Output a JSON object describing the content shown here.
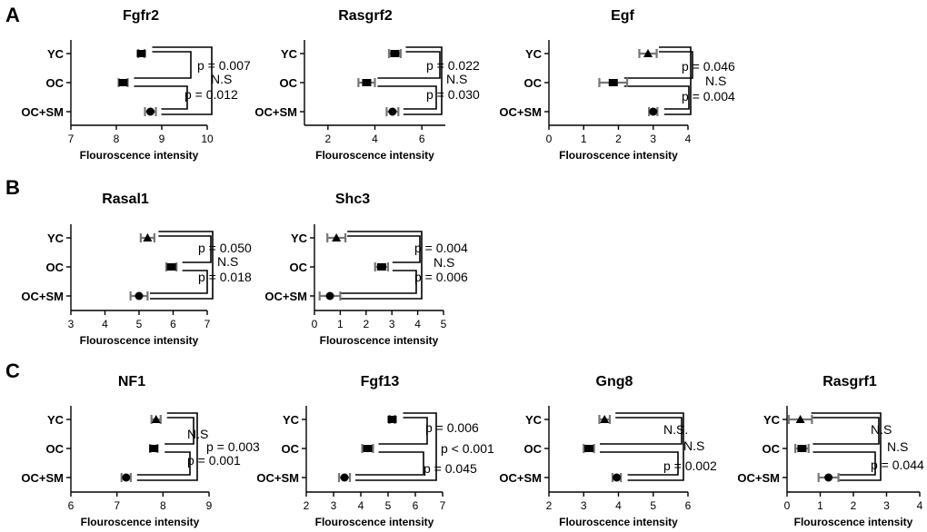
{
  "panels": [
    {
      "letter": "A",
      "color": "#000000"
    },
    {
      "letter": "B",
      "color": "#000000"
    },
    {
      "letter": "C",
      "color": "#000000"
    }
  ],
  "chart_data": [
    {
      "type": "scatter",
      "panel": "A",
      "title": "Fgfr2",
      "xlabel": "Flouroscence intensity",
      "xlim": [
        7,
        10
      ],
      "xticks": [
        7,
        8,
        9,
        10
      ],
      "categories": [
        "YC",
        "OC",
        "OC+SM"
      ],
      "values": [
        8.55,
        8.15,
        8.75
      ],
      "errors": [
        0.07,
        0.1,
        0.12
      ],
      "markers": [
        "square",
        "square",
        "circle"
      ],
      "annotations": [
        "p = 0.007",
        "N.S",
        "p = 0.012"
      ]
    },
    {
      "type": "scatter",
      "panel": "A",
      "title": "Rasgrf2",
      "xlabel": "Flouroscence intensity",
      "xlim": [
        1,
        7
      ],
      "xticks": [
        2,
        4,
        6
      ],
      "categories": [
        "YC",
        "OC",
        "OC+SM"
      ],
      "values": [
        4.85,
        3.65,
        4.75
      ],
      "errors": [
        0.25,
        0.35,
        0.25
      ],
      "markers": [
        "square",
        "square",
        "circle"
      ],
      "annotations": [
        "p = 0.022",
        "N.S",
        "p = 0.030"
      ]
    },
    {
      "type": "scatter",
      "panel": "A",
      "title": "Egf",
      "xlabel": "Flouroscence intensity",
      "xlim": [
        0,
        4
      ],
      "xticks": [
        0,
        1,
        2,
        3,
        4
      ],
      "categories": [
        "YC",
        "OC",
        "OC+SM"
      ],
      "values": [
        2.85,
        1.85,
        3.0
      ],
      "errors": [
        0.25,
        0.4,
        0.12
      ],
      "markers": [
        "triangle",
        "square",
        "circle"
      ],
      "annotations": [
        "p = 0.046",
        "N.S",
        "p = 0.004"
      ]
    },
    {
      "type": "scatter",
      "panel": "B",
      "title": "Rasal1",
      "xlabel": "Flouroscence intensity",
      "xlim": [
        3,
        7
      ],
      "xticks": [
        3,
        4,
        5,
        6,
        7
      ],
      "categories": [
        "YC",
        "OC",
        "OC+SM"
      ],
      "values": [
        5.25,
        5.95,
        5.0
      ],
      "errors": [
        0.2,
        0.15,
        0.25
      ],
      "markers": [
        "triangle",
        "square",
        "circle"
      ],
      "annotations": [
        "p = 0.050",
        "N.S",
        "p = 0.018"
      ]
    },
    {
      "type": "scatter",
      "panel": "B",
      "title": "Shc3",
      "xlabel": "Flouroscence intensity",
      "xlim": [
        0,
        5
      ],
      "xticks": [
        0,
        1,
        2,
        3,
        4,
        5
      ],
      "categories": [
        "YC",
        "OC",
        "OC+SM"
      ],
      "values": [
        0.85,
        2.6,
        0.6
      ],
      "errors": [
        0.35,
        0.25,
        0.4
      ],
      "markers": [
        "triangle",
        "square",
        "circle"
      ],
      "annotations": [
        "p = 0.004",
        "N.S",
        "p = 0.006"
      ]
    },
    {
      "type": "scatter",
      "panel": "C",
      "title": "NF1",
      "xlabel": "Flouroscence intensity",
      "xlim": [
        6,
        9
      ],
      "xticks": [
        6,
        7,
        8,
        9
      ],
      "categories": [
        "YC",
        "OC",
        "OC+SM"
      ],
      "values": [
        7.85,
        7.8,
        7.2
      ],
      "errors": [
        0.1,
        0.08,
        0.1
      ],
      "markers": [
        "triangle",
        "square",
        "circle"
      ],
      "annotations": [
        "N.S",
        "p = 0.003",
        "p = 0.001"
      ]
    },
    {
      "type": "scatter",
      "panel": "C",
      "title": "Fgf13",
      "xlabel": "Flouroscence intensity",
      "xlim": [
        2,
        7
      ],
      "xticks": [
        2,
        3,
        4,
        5,
        6,
        7
      ],
      "categories": [
        "YC",
        "OC",
        "OC+SM"
      ],
      "values": [
        5.15,
        4.25,
        3.4
      ],
      "errors": [
        0.1,
        0.2,
        0.2
      ],
      "markers": [
        "square",
        "square",
        "circle"
      ],
      "annotations": [
        "p = 0.006",
        "p < 0.001",
        "p = 0.045"
      ]
    },
    {
      "type": "scatter",
      "panel": "C",
      "title": "Gng8",
      "xlabel": "Flouroscence intensity",
      "xlim": [
        2,
        6
      ],
      "xticks": [
        2,
        3,
        4,
        5,
        6
      ],
      "categories": [
        "YC",
        "OC",
        "OC+SM"
      ],
      "values": [
        3.6,
        3.15,
        3.95
      ],
      "errors": [
        0.15,
        0.15,
        0.12
      ],
      "markers": [
        "triangle",
        "square",
        "circle"
      ],
      "annotations": [
        "N.S.",
        "N.S",
        "p = 0.002"
      ]
    },
    {
      "type": "scatter",
      "panel": "C",
      "title": "Rasgrf1",
      "xlabel": "Flouroscence intensity",
      "xlim": [
        0,
        4
      ],
      "xticks": [
        0,
        1,
        2,
        3,
        4
      ],
      "categories": [
        "YC",
        "OC",
        "OC+SM"
      ],
      "values": [
        0.4,
        0.45,
        1.25
      ],
      "errors": [
        0.35,
        0.2,
        0.3
      ],
      "markers": [
        "triangle",
        "square",
        "circle"
      ],
      "annotations": [
        "N.S",
        "N.S",
        "p = 0.044"
      ]
    }
  ]
}
